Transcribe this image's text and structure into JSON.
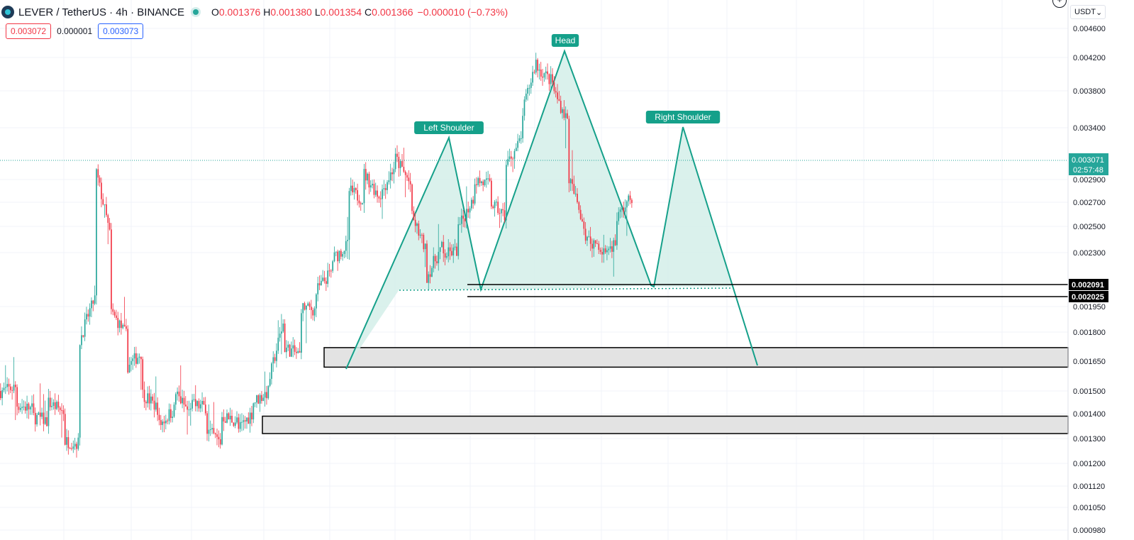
{
  "header": {
    "symbol": "LEVER / TetherUS · 4h · BINANCE",
    "o_label": "O",
    "o_value": "0.001376",
    "h_label": "H",
    "h_value": "0.001380",
    "l_label": "L",
    "l_value": "0.001354",
    "c_label": "C",
    "c_value": "0.001366",
    "change": "−0.000010 (−0.73%)"
  },
  "quote": {
    "sell": "0.003072",
    "spread": "0.000001",
    "buy": "0.003073"
  },
  "currency": {
    "label": "USDT",
    "chevron": "⌄"
  },
  "plus_icon": "+",
  "colors": {
    "up": "#26a69a",
    "down": "#f23645",
    "pattern": "#15a08a",
    "pattern_fill": "#d3efe9",
    "zone_fill": "#e3e3e3"
  },
  "chart_data": {
    "type": "candlestick",
    "pair": "LEVER/USDT",
    "interval": "4h",
    "axis_ticks": [
      "0.004600",
      "0.004200",
      "0.003800",
      "0.003400",
      "0.002900",
      "0.002700",
      "0.002500",
      "0.002300",
      "0.001950",
      "0.001800",
      "0.001650",
      "0.001500",
      "0.001400",
      "0.001300",
      "0.001200",
      "0.001120",
      "0.001050",
      "0.000980"
    ],
    "current_price": "0.003071",
    "countdown": "02:57:48",
    "level_labels": [
      "0.002091",
      "0.002025"
    ],
    "levels": [
      0.002091,
      0.002025
    ],
    "annotations": [
      "Left Shoulder",
      "Head",
      "Right Shoulder"
    ],
    "zones": [
      [
        0.00162,
        0.00172
      ],
      [
        0.00132,
        0.00139
      ]
    ],
    "trend": [
      [
        0.0015,
        0.00152
      ],
      [
        0.00144,
        0.00142
      ],
      [
        0.00139,
        0.00137
      ],
      [
        0.00145,
        0.00141
      ],
      [
        0.00129,
        0.00128
      ],
      [
        0.00175,
        0.00202
      ],
      [
        0.003,
        0.00239
      ],
      [
        0.00192,
        0.00178
      ],
      [
        0.00162,
        0.0017
      ],
      [
        0.00149,
        0.00142
      ],
      [
        0.00135,
        0.00142
      ],
      [
        0.0015,
        0.0014
      ],
      [
        0.00144,
        0.00143
      ],
      [
        0.00134,
        0.00128
      ],
      [
        0.00139,
        0.00137
      ],
      [
        0.00133,
        0.00141
      ],
      [
        0.00145,
        0.0015
      ],
      [
        0.00155,
        0.00188
      ],
      [
        0.00172,
        0.00168
      ],
      [
        0.00195,
        0.00193
      ],
      [
        0.00205,
        0.00218
      ],
      [
        0.00225,
        0.00236
      ],
      [
        0.00281,
        0.00272
      ],
      [
        0.00296,
        0.00275
      ],
      [
        0.00275,
        0.00303
      ],
      [
        0.0031,
        0.00285
      ],
      [
        0.0026,
        0.0023
      ],
      [
        0.00214,
        0.00235
      ],
      [
        0.00228,
        0.00232
      ],
      [
        0.00248,
        0.00275
      ],
      [
        0.0029,
        0.00285
      ],
      [
        0.0027,
        0.00258
      ],
      [
        0.00302,
        0.00328
      ],
      [
        0.0035,
        0.0042
      ],
      [
        0.00408,
        0.0039
      ],
      [
        0.00382,
        0.00345
      ],
      [
        0.00292,
        0.0025
      ],
      [
        0.0024,
        0.00236
      ],
      [
        0.00228,
        0.00238
      ],
      [
        0.00256,
        0.00275
      ],
      [
        0.00295,
        0.00307
      ]
    ]
  }
}
